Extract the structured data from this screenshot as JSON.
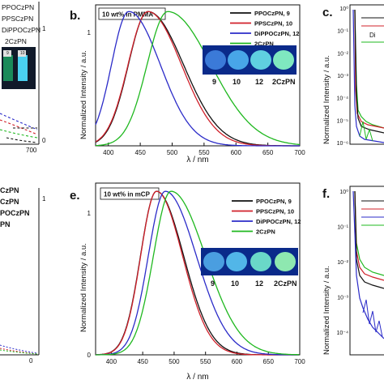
{
  "panels": {
    "a": {
      "legend": [
        "PPOCzPN",
        "PPSCzPN",
        "DiPPOCzPN",
        "2CzPN"
      ],
      "tick_x_end": "700",
      "tick_right": [
        "1",
        "0"
      ],
      "vial_labels": [
        "9",
        "10"
      ]
    },
    "b": {
      "letter": "b."
    },
    "c": {
      "letter": "c.",
      "y_ticks": [
        "10⁰",
        "10⁻¹",
        "10⁻²",
        "10⁻³",
        "10⁻⁴",
        "10⁻⁵",
        "10⁻⁶"
      ]
    },
    "d": {
      "legend": [
        "CzPN",
        "CzPN",
        "POCzPN",
        "PN"
      ],
      "tick_right": "1",
      "tick_bottom": "0"
    },
    "e": {
      "letter": "e."
    },
    "f": {
      "letter": "f.",
      "y_ticks": [
        "10⁰",
        "10⁻¹",
        "10⁻²",
        "10⁻³",
        "10⁻⁴"
      ]
    }
  },
  "chart_data": [
    {
      "panel": "b",
      "type": "line",
      "annotation": "10 wt% in PMMA",
      "xlabel": "λ / nm",
      "ylabel": "Normalized Intensity / a.u.",
      "xlim": [
        380,
        700
      ],
      "ylim": [
        0,
        1.05
      ],
      "x_ticks": [
        400,
        450,
        500,
        550,
        600,
        650,
        700
      ],
      "y_ticks": [
        0,
        1
      ],
      "legend_labels": [
        "PPOCzPN, 9",
        "PPSCzPN, 10",
        "DiPPOCzPN, 12",
        "2CzPN"
      ],
      "photo_labels": [
        "9",
        "10",
        "12",
        "2CzPN"
      ],
      "series": [
        {
          "name": "PPOCzPN, 9",
          "color": "#111111",
          "peak": 462,
          "fwhm": 97,
          "skew": 1.35
        },
        {
          "name": "PPSCzPN, 10",
          "color": "#d0202a",
          "peak": 462,
          "fwhm": 95,
          "skew": 1.3
        },
        {
          "name": "DiPPOCzPN, 12",
          "color": "#2b2bc8",
          "peak": 432,
          "fwhm": 86,
          "skew": 1.35
        },
        {
          "name": "2CzPN",
          "color": "#1fb81f",
          "peak": 493,
          "fwhm": 110,
          "skew": 1.45
        }
      ]
    },
    {
      "panel": "e",
      "type": "line",
      "annotation": "10 wt% in mCP",
      "xlabel": "λ / nm",
      "ylabel": "Normalized Intensity / a.u.",
      "xlim": [
        375,
        700
      ],
      "ylim": [
        0,
        1.05
      ],
      "x_ticks": [
        400,
        450,
        500,
        550,
        600,
        650,
        700
      ],
      "y_ticks": [
        0,
        1
      ],
      "legend_labels": [
        "PPOCzPN, 9",
        "PPSCzPN, 10",
        "DiPPOCzPN, 12",
        "2CzPN"
      ],
      "photo_labels": [
        "9",
        "10",
        "12",
        "2CzPN"
      ],
      "series": [
        {
          "name": "PPOCzPN, 9",
          "color": "#111111",
          "peak": 472,
          "fwhm": 78,
          "skew": 1.3
        },
        {
          "name": "PPSCzPN, 10",
          "color": "#d0202a",
          "peak": 472,
          "fwhm": 76,
          "skew": 1.28
        },
        {
          "name": "DiPPOCzPN, 12",
          "color": "#2b2bc8",
          "peak": 486,
          "fwhm": 86,
          "skew": 1.35
        },
        {
          "name": "2CzPN",
          "color": "#1fb81f",
          "peak": 495,
          "fwhm": 92,
          "skew": 1.4
        }
      ]
    }
  ],
  "colors": {
    "black": "#111111",
    "red": "#d0202a",
    "blue": "#2b2bc8",
    "green": "#1fb81f",
    "photo_bg": "#0a2a8a"
  }
}
